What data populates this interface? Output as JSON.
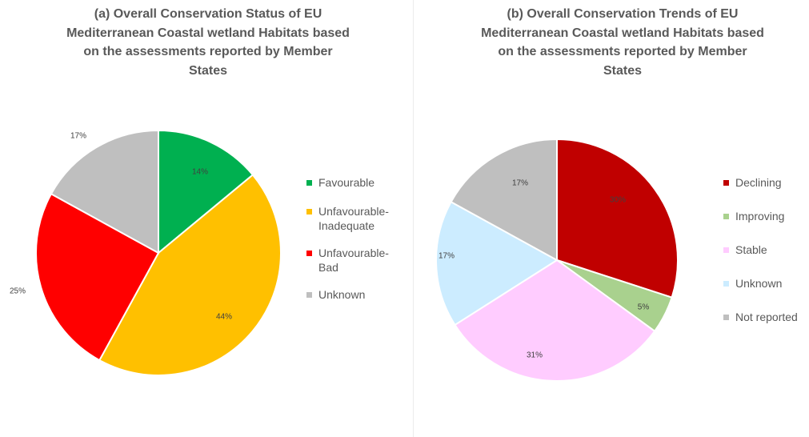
{
  "chart_data": [
    {
      "type": "pie",
      "title": "(a) Overall Conservation Status of EU Mediterranean Coastal wetland Habitats based on the assessments reported by Member States",
      "title_lines": [
        "(a) Overall Conservation Status of EU",
        "Mediterranean Coastal wetland Habitats based",
        "on the assessments reported by Member",
        "States"
      ],
      "legend_position": "right",
      "slices": [
        {
          "name": "Favourable",
          "legend_label": "Favourable",
          "value": 14,
          "label": "14%",
          "color": "#00b050"
        },
        {
          "name": "Unfavourable-Inadequate",
          "legend_label": "Unfavourable-\nInadequate",
          "value": 44,
          "label": "44%",
          "color": "#ffc000"
        },
        {
          "name": "Unfavourable-Bad",
          "legend_label": "Unfavourable-\nBad",
          "value": 25,
          "label": "25%",
          "color": "#ff0000"
        },
        {
          "name": "Unknown",
          "legend_label": "Unknown",
          "value": 17,
          "label": "17%",
          "color": "#bfbfbf"
        }
      ]
    },
    {
      "type": "pie",
      "title": "(b) Overall Conservation Trends of EU Mediterranean Coastal wetland Habitats based on the assessments reported by Member States",
      "title_lines": [
        "(b) Overall Conservation Trends of EU",
        "Mediterranean Coastal wetland Habitats based",
        "on the assessments reported by Member",
        "States"
      ],
      "legend_position": "right",
      "slices": [
        {
          "name": "Declining",
          "legend_label": "Declining",
          "value": 30,
          "label": "30%",
          "color": "#c00000"
        },
        {
          "name": "Improving",
          "legend_label": "Improving",
          "value": 5,
          "label": "5%",
          "color": "#a9d18e"
        },
        {
          "name": "Stable",
          "legend_label": "Stable",
          "value": 31,
          "label": "31%",
          "color": "#ffccff"
        },
        {
          "name": "Unknown",
          "legend_label": "Unknown",
          "value": 17,
          "label": "17%",
          "color": "#ccecff"
        },
        {
          "name": "Not reported",
          "legend_label": "Not reported",
          "value": 17,
          "label": "17%",
          "color": "#bfbfbf"
        }
      ]
    }
  ]
}
